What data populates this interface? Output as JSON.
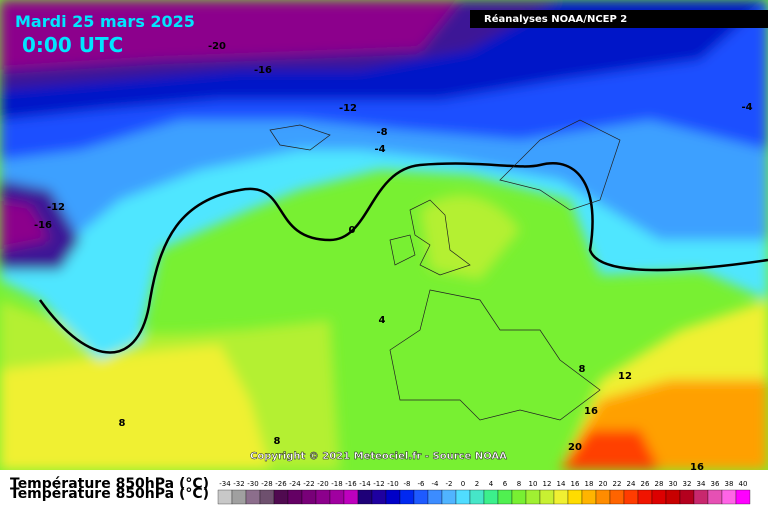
{
  "header": {
    "date": "Mardi 25 mars 2025",
    "time": "0:00 UTC",
    "source": "Réanalyses NOAA/NCEP 2"
  },
  "map": {
    "contour_labels": [
      "-20",
      "-16",
      "-12",
      "-8",
      "-4",
      "-4",
      "-12",
      "-16",
      "0",
      "4",
      "8",
      "8",
      "8",
      "12",
      "16",
      "20",
      "16"
    ],
    "copyright": "Copyright © 2021 Meteociel.fr - Source NOAA"
  },
  "legend": {
    "title": "Température 850hPa (°C)",
    "labels": [
      "-34",
      "-32",
      "-30",
      "-28",
      "-26",
      "-24",
      "-22",
      "-20",
      "-18",
      "-16",
      "-14",
      "-12",
      "-10",
      "-8",
      "-6",
      "-4",
      "-2",
      "0",
      "2",
      "4",
      "6",
      "8",
      "10",
      "12",
      "14",
      "16",
      "18",
      "20",
      "22",
      "24",
      "26",
      "28",
      "30",
      "32",
      "34",
      "36",
      "38",
      "40"
    ],
    "colors": [
      "#c8c8c8",
      "#a0a0a0",
      "#8c6e8c",
      "#6e506e",
      "#500a50",
      "#640064",
      "#780078",
      "#8c008c",
      "#a000a0",
      "#be00be",
      "#1e0078",
      "#1e00a0",
      "#0000c8",
      "#0028f0",
      "#1e5aff",
      "#3c8cff",
      "#50b4ff",
      "#50dcff",
      "#46e6c8",
      "#3cf08c",
      "#50f050",
      "#78f032",
      "#a0f032",
      "#c8f032",
      "#f0f032",
      "#ffdc00",
      "#ffb400",
      "#ff8c00",
      "#ff6400",
      "#ff3c00",
      "#f01400",
      "#dc0000",
      "#c80000",
      "#b4001e",
      "#c8286e",
      "#e650b4",
      "#ff64e6",
      "#ff00ff"
    ]
  }
}
